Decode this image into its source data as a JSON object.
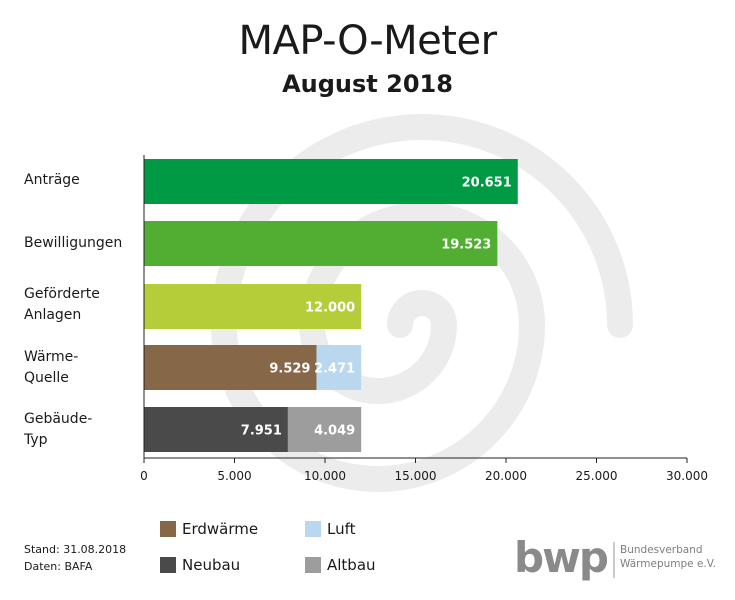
{
  "title": "MAP-O-Meter",
  "subtitle": "August 2018",
  "colors": {
    "antraege": "#009a44",
    "bewilligungen": "#52ae32",
    "anlagen": "#b6cd3a",
    "erdwaerme": "#866747",
    "luft": "#b9d7ee",
    "neubau": "#4a4a4a",
    "altbau": "#9d9d9d",
    "watermark": "#ececec"
  },
  "categories": [
    {
      "label_lines": [
        "Anträge"
      ]
    },
    {
      "label_lines": [
        "Bewilligungen"
      ]
    },
    {
      "label_lines": [
        "Geförderte",
        "Anlagen"
      ]
    },
    {
      "label_lines": [
        "Wärme-",
        "Quelle"
      ]
    },
    {
      "label_lines": [
        "Gebäude-",
        "Typ"
      ]
    }
  ],
  "legend": [
    {
      "label": "Erdwärme",
      "color": "#866747"
    },
    {
      "label": "Luft",
      "color": "#b9d7ee"
    },
    {
      "label": "Neubau",
      "color": "#4a4a4a"
    },
    {
      "label": "Altbau",
      "color": "#9d9d9d"
    }
  ],
  "footer": {
    "stand": "Stand: 31.08.2018",
    "daten": "Daten: BAFA"
  },
  "logo": {
    "mark": "bwp",
    "line1": "Bundesverband",
    "line2": "Wärmepumpe e.V."
  },
  "chart_data": {
    "type": "bar",
    "orientation": "horizontal",
    "stacked": true,
    "categories": [
      "Anträge",
      "Bewilligungen",
      "Geförderte Anlagen",
      "Wärme-Quelle",
      "Gebäude-Typ"
    ],
    "series": [
      {
        "name": "Anträge",
        "color": "#009a44",
        "values": [
          20651,
          null,
          null,
          null,
          null
        ],
        "labels": [
          "20.651",
          "",
          "",
          "",
          ""
        ]
      },
      {
        "name": "Bewilligungen",
        "color": "#52ae32",
        "values": [
          null,
          19523,
          null,
          null,
          null
        ],
        "labels": [
          "",
          "19.523",
          "",
          "",
          ""
        ]
      },
      {
        "name": "Geförderte Anlagen",
        "color": "#b6cd3a",
        "values": [
          null,
          null,
          12000,
          null,
          null
        ],
        "labels": [
          "",
          "",
          "12.000",
          "",
          ""
        ]
      },
      {
        "name": "Erdwärme",
        "color": "#866747",
        "values": [
          null,
          null,
          null,
          9529,
          null
        ],
        "labels": [
          "",
          "",
          "",
          "9.529",
          ""
        ]
      },
      {
        "name": "Luft",
        "color": "#b9d7ee",
        "values": [
          null,
          null,
          null,
          2471,
          null
        ],
        "labels": [
          "",
          "",
          "",
          "2.471",
          ""
        ]
      },
      {
        "name": "Neubau",
        "color": "#4a4a4a",
        "values": [
          null,
          null,
          null,
          null,
          7951
        ],
        "labels": [
          "",
          "",
          "",
          "",
          "7.951"
        ]
      },
      {
        "name": "Altbau",
        "color": "#9d9d9d",
        "values": [
          null,
          null,
          null,
          null,
          4049
        ],
        "labels": [
          "",
          "",
          "",
          "",
          "4.049"
        ]
      }
    ],
    "xlim": [
      0,
      30000
    ],
    "xticks": [
      0,
      5000,
      10000,
      15000,
      20000,
      25000,
      30000
    ],
    "xtick_labels": [
      "0",
      "5.000",
      "10.000",
      "15.000",
      "20.000",
      "25.000",
      "30.000"
    ],
    "grid": false,
    "legend_position": "bottom"
  }
}
